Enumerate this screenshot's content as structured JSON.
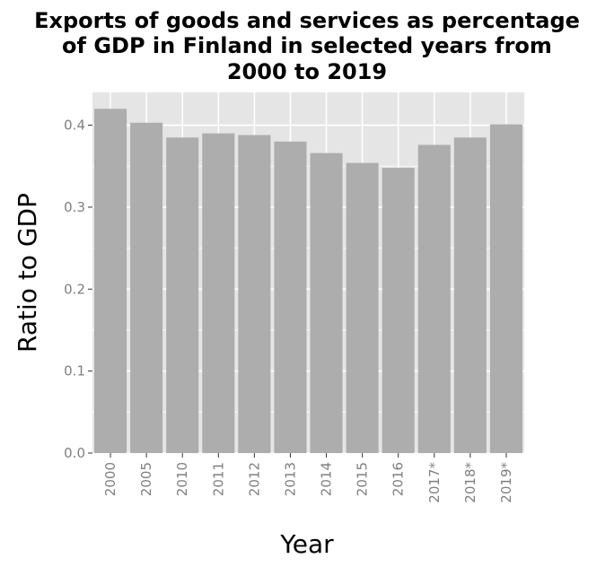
{
  "chart_data": {
    "type": "bar",
    "title_lines": [
      "Exports of goods and services as percentage",
      "of GDP in Finland in selected years from",
      "2000 to 2019"
    ],
    "xlabel": "Year",
    "ylabel": "Ratio to GDP",
    "categories": [
      "2000",
      "2005",
      "2010",
      "2011",
      "2012",
      "2013",
      "2014",
      "2015",
      "2016",
      "2017*",
      "2018*",
      "2019*"
    ],
    "values": [
      0.42,
      0.403,
      0.385,
      0.39,
      0.388,
      0.38,
      0.366,
      0.354,
      0.348,
      0.376,
      0.385,
      0.401
    ],
    "yticks": [
      0.0,
      0.1,
      0.2,
      0.3,
      0.4
    ],
    "ytick_labels": [
      "0.0",
      "0.1",
      "0.2",
      "0.3",
      "0.4"
    ],
    "ylim": [
      0,
      0.44
    ],
    "grid": true,
    "legend": "none",
    "colors": {
      "bar": "#adadad",
      "panel": "#e5e5e5",
      "grid": "#ffffff",
      "tick_text": "#7f7f7f",
      "text": "#000000"
    }
  }
}
